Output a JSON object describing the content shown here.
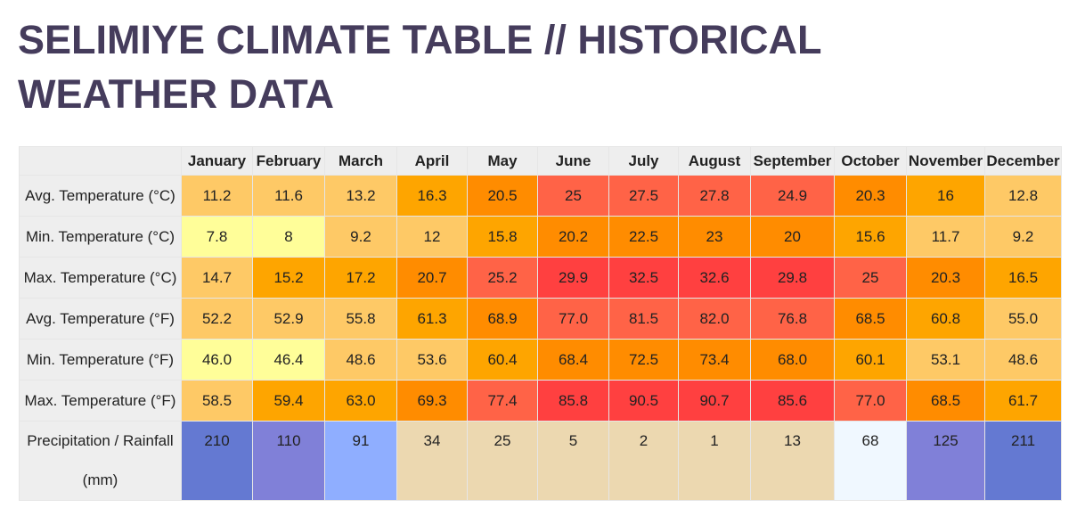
{
  "page": {
    "title": "SELIMIYE CLIMATE TABLE // HISTORICAL WEATHER DATA"
  },
  "table": {
    "months": [
      "January",
      "February",
      "March",
      "April",
      "May",
      "June",
      "July",
      "August",
      "September",
      "October",
      "November",
      "December"
    ],
    "rows": [
      {
        "label": "Avg. Temperature (°C)",
        "values": [
          "11.2",
          "11.6",
          "13.2",
          "16.3",
          "20.5",
          "25",
          "27.5",
          "27.8",
          "24.9",
          "20.3",
          "16",
          "12.8"
        ],
        "colors": [
          "#fec966",
          "#fec966",
          "#fec966",
          "#fea500",
          "#ff8c00",
          "#ff6347",
          "#ff6347",
          "#ff6347",
          "#ff6347",
          "#ff8c00",
          "#fea500",
          "#fec966"
        ]
      },
      {
        "label": "Min. Temperature (°C)",
        "values": [
          "7.8",
          "8",
          "9.2",
          "12",
          "15.8",
          "20.2",
          "22.5",
          "23",
          "20",
          "15.6",
          "11.7",
          "9.2"
        ],
        "colors": [
          "#fffe99",
          "#fffe99",
          "#fec966",
          "#fec966",
          "#fea500",
          "#ff8c00",
          "#ff8c00",
          "#ff8c00",
          "#ff8c00",
          "#fea500",
          "#fec966",
          "#fec966"
        ]
      },
      {
        "label": "Max. Temperature (°C)",
        "values": [
          "14.7",
          "15.2",
          "17.2",
          "20.7",
          "25.2",
          "29.9",
          "32.5",
          "32.6",
          "29.8",
          "25",
          "20.3",
          "16.5"
        ],
        "colors": [
          "#fec966",
          "#fea500",
          "#fea500",
          "#ff8c00",
          "#ff6347",
          "#ff4040",
          "#ff4040",
          "#ff4040",
          "#ff4040",
          "#ff6347",
          "#ff8c00",
          "#fea500"
        ]
      },
      {
        "label": "Avg. Temperature (°F)",
        "values": [
          "52.2",
          "52.9",
          "55.8",
          "61.3",
          "68.9",
          "77.0",
          "81.5",
          "82.0",
          "76.8",
          "68.5",
          "60.8",
          "55.0"
        ],
        "colors": [
          "#fec966",
          "#fec966",
          "#fec966",
          "#fea500",
          "#ff8c00",
          "#ff6347",
          "#ff6347",
          "#ff6347",
          "#ff6347",
          "#ff8c00",
          "#fea500",
          "#fec966"
        ]
      },
      {
        "label": "Min. Temperature (°F)",
        "values": [
          "46.0",
          "46.4",
          "48.6",
          "53.6",
          "60.4",
          "68.4",
          "72.5",
          "73.4",
          "68.0",
          "60.1",
          "53.1",
          "48.6"
        ],
        "colors": [
          "#fffe99",
          "#fffe99",
          "#fec966",
          "#fec966",
          "#fea500",
          "#ff8c00",
          "#ff8c00",
          "#ff8c00",
          "#ff8c00",
          "#fea500",
          "#fec966",
          "#fec966"
        ]
      },
      {
        "label": "Max. Temperature (°F)",
        "values": [
          "58.5",
          "59.4",
          "63.0",
          "69.3",
          "77.4",
          "85.8",
          "90.5",
          "90.7",
          "85.6",
          "77.0",
          "68.5",
          "61.7"
        ],
        "colors": [
          "#fec966",
          "#fea500",
          "#fea500",
          "#ff8c00",
          "#ff6347",
          "#ff4040",
          "#ff4040",
          "#ff4040",
          "#ff4040",
          "#ff6347",
          "#ff8c00",
          "#fea500"
        ]
      },
      {
        "label": "Precipitation / Rainfall (mm)",
        "values": [
          "210",
          "110",
          "91",
          "34",
          "25",
          "5",
          "2",
          "1",
          "13",
          "68",
          "125",
          "211"
        ],
        "colors": [
          "#6479d2",
          "#8080d8",
          "#8faeff",
          "#ecd8b0",
          "#ecd8b0",
          "#ecd8b0",
          "#ecd8b0",
          "#ecd8b0",
          "#ecd8b0",
          "#f0f8ff",
          "#8080d8",
          "#6479d2"
        ]
      }
    ]
  }
}
